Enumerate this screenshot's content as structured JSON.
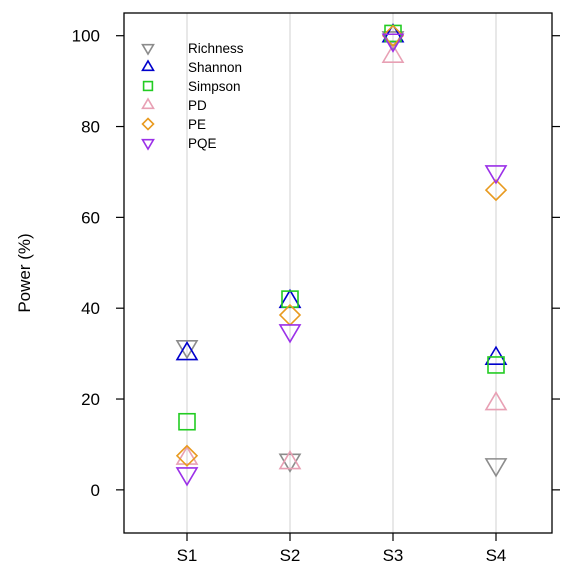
{
  "chart_data": {
    "type": "scatter",
    "title": "",
    "xlabel": "",
    "ylabel": "Power (%)",
    "categories": [
      "S1",
      "S2",
      "S3",
      "S4"
    ],
    "ylim": [
      -9.5,
      105
    ],
    "yticks": [
      "0",
      "20",
      "40",
      "60",
      "80",
      "100"
    ],
    "grid": "vertical lines at each category",
    "legend_position": "top-left",
    "series": [
      {
        "name": "Richness",
        "color": "#8c8c8c",
        "marker": "triangle-down",
        "values": [
          31.5,
          6.5,
          99.5,
          5.5
        ]
      },
      {
        "name": "Shannon",
        "color": "#0000cc",
        "marker": "triangle-up",
        "values": [
          30.0,
          41.5,
          100.0,
          29.0
        ]
      },
      {
        "name": "Simpson",
        "color": "#22cc22",
        "marker": "square",
        "values": [
          15.0,
          42.0,
          100.5,
          27.5
        ]
      },
      {
        "name": "PD",
        "color": "#e8a0b4",
        "marker": "triangle-up",
        "values": [
          7.0,
          6.0,
          95.5,
          19.0
        ]
      },
      {
        "name": "PE",
        "color": "#e89a1f",
        "marker": "diamond",
        "values": [
          7.5,
          38.5,
          100.0,
          66.0
        ]
      },
      {
        "name": "PQE",
        "color": "#9b30e8",
        "marker": "triangle-down",
        "values": [
          3.5,
          35.0,
          99.0,
          70.0
        ]
      }
    ]
  }
}
